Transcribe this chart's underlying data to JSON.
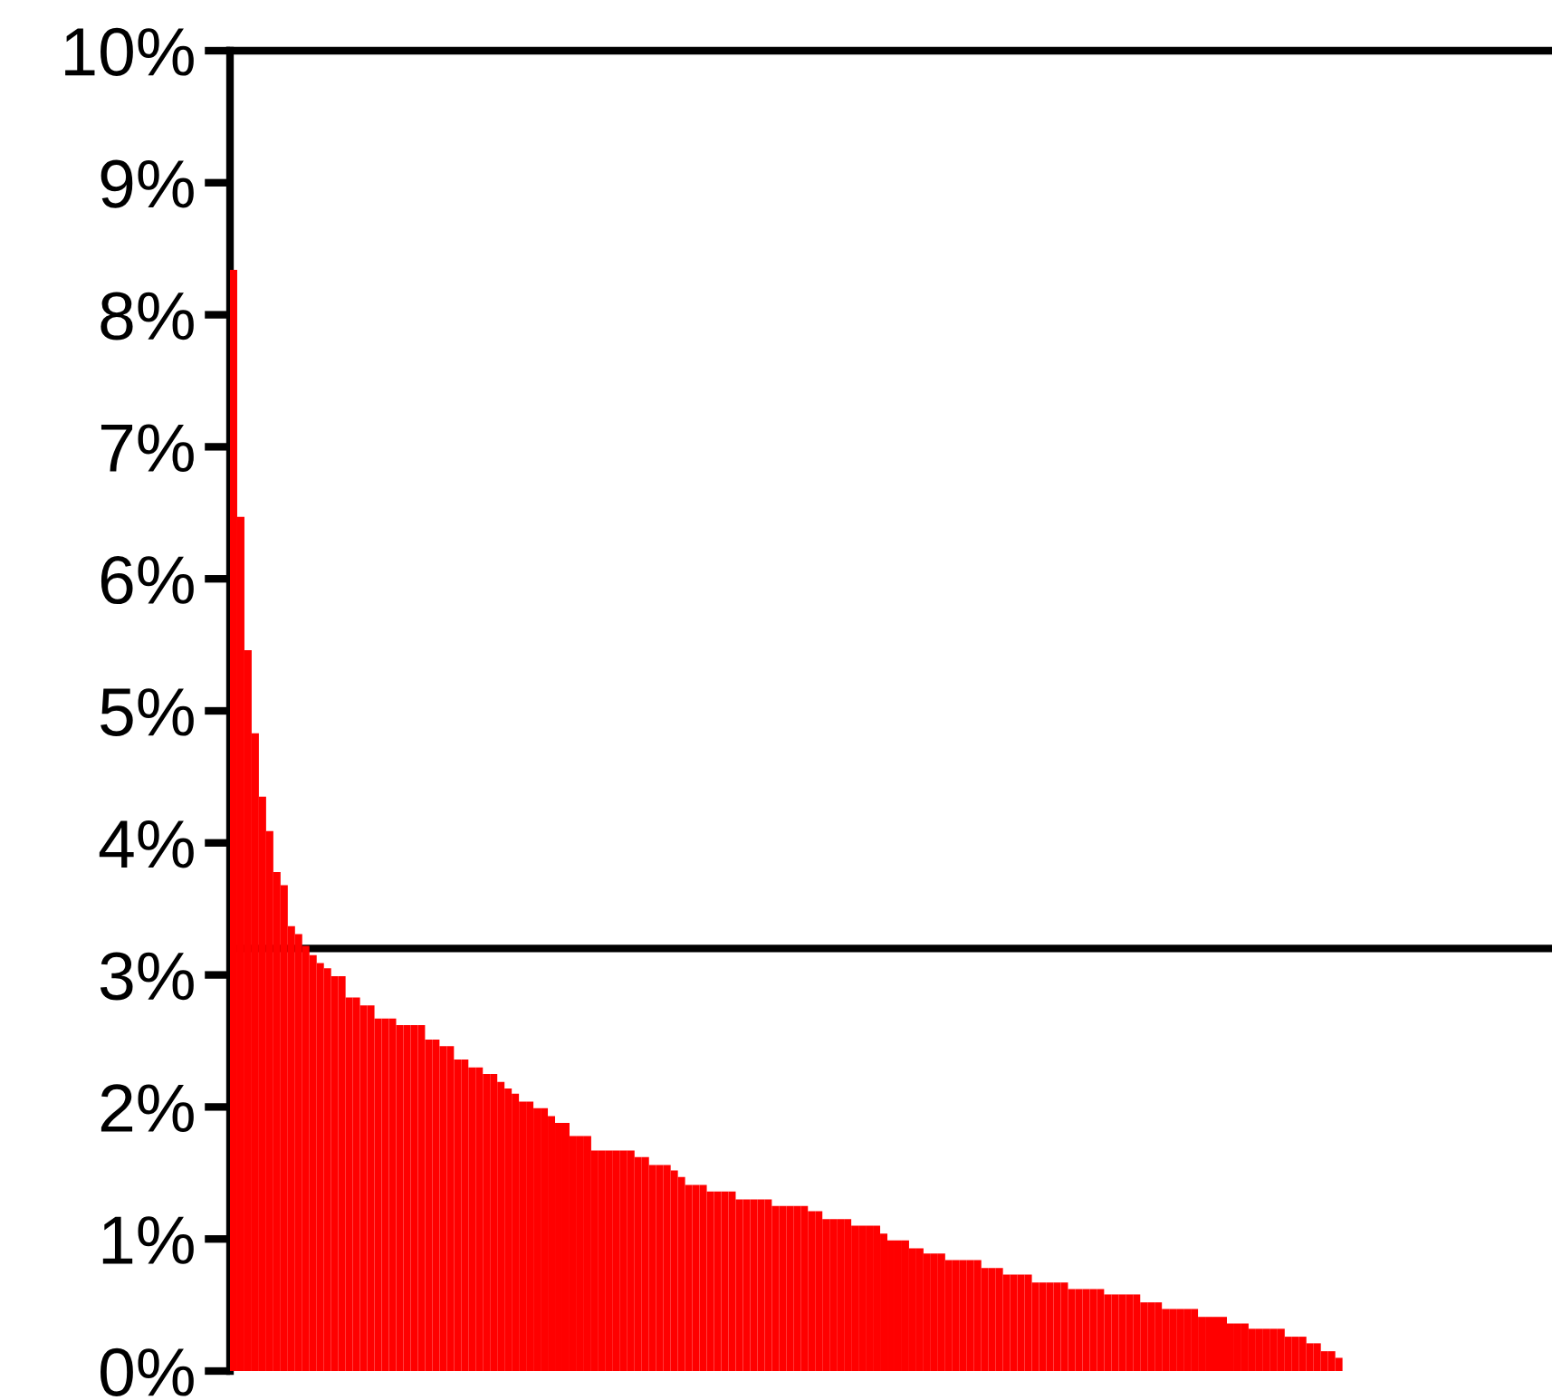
{
  "chart_data": {
    "type": "bar",
    "color": "#ff0000",
    "categories": [
      null,
      null,
      null,
      null,
      null,
      null,
      null,
      null,
      null,
      null,
      null,
      null,
      null,
      null,
      null,
      null,
      null,
      null,
      null,
      null,
      null,
      null,
      null,
      null,
      null,
      null,
      null,
      null,
      null,
      null,
      null,
      null,
      null,
      null,
      null,
      null,
      null,
      null,
      null,
      null,
      null,
      null,
      null,
      null,
      null,
      null,
      null,
      null,
      null,
      null,
      null,
      null,
      null,
      null,
      null,
      null,
      null,
      null,
      null,
      null,
      null,
      null,
      null,
      null,
      null,
      null,
      null,
      null,
      null,
      null,
      null,
      null,
      null,
      null,
      null,
      null,
      null,
      null,
      null,
      null,
      null,
      null,
      null,
      null,
      null,
      null,
      null,
      null,
      null,
      null,
      null,
      null,
      null,
      null,
      null,
      null,
      null,
      null,
      null,
      null,
      null,
      null,
      null,
      null,
      null,
      null,
      null,
      null,
      null,
      null,
      null,
      null,
      null,
      null,
      null,
      null,
      null,
      null,
      null,
      null,
      null,
      null,
      null,
      null,
      null,
      null,
      null,
      null,
      null,
      null,
      null,
      null,
      null,
      null,
      null,
      null,
      null,
      null,
      null,
      null,
      null,
      null,
      null,
      null,
      null,
      null,
      null,
      null,
      null,
      null,
      null,
      null,
      null,
      null,
      null,
      null,
      null,
      null,
      null,
      null,
      null,
      null,
      null,
      null,
      null,
      null,
      null,
      null,
      null,
      null,
      null,
      null,
      null,
      null,
      null,
      null,
      null,
      null,
      null,
      null,
      null,
      null,
      null
    ],
    "values": [
      8.34,
      6.47,
      5.46,
      4.83,
      4.35,
      4.09,
      3.78,
      3.68,
      3.37,
      3.31,
      3.22,
      3.15,
      3.09,
      3.05,
      2.99,
      2.99,
      2.83,
      2.83,
      2.77,
      2.77,
      2.67,
      2.67,
      2.67,
      2.62,
      2.62,
      2.62,
      2.62,
      2.51,
      2.51,
      2.46,
      2.46,
      2.36,
      2.36,
      2.3,
      2.3,
      2.25,
      2.25,
      2.19,
      2.14,
      2.1,
      2.04,
      2.04,
      1.99,
      1.99,
      1.93,
      1.88,
      1.88,
      1.78,
      1.78,
      1.78,
      1.67,
      1.67,
      1.67,
      1.67,
      1.67,
      1.67,
      1.62,
      1.62,
      1.56,
      1.56,
      1.56,
      1.52,
      1.47,
      1.41,
      1.41,
      1.41,
      1.36,
      1.36,
      1.36,
      1.36,
      1.3,
      1.3,
      1.3,
      1.3,
      1.3,
      1.25,
      1.25,
      1.25,
      1.25,
      1.25,
      1.21,
      1.21,
      1.15,
      1.15,
      1.15,
      1.15,
      1.1,
      1.1,
      1.1,
      1.1,
      1.04,
      0.99,
      0.99,
      0.99,
      0.93,
      0.93,
      0.89,
      0.89,
      0.89,
      0.84,
      0.84,
      0.84,
      0.84,
      0.84,
      0.78,
      0.78,
      0.78,
      0.73,
      0.73,
      0.73,
      0.73,
      0.67,
      0.67,
      0.67,
      0.67,
      0.67,
      0.62,
      0.62,
      0.62,
      0.62,
      0.62,
      0.58,
      0.58,
      0.58,
      0.58,
      0.58,
      0.52,
      0.52,
      0.52,
      0.47,
      0.47,
      0.47,
      0.47,
      0.47,
      0.41,
      0.41,
      0.41,
      0.41,
      0.36,
      0.36,
      0.36,
      0.32,
      0.32,
      0.32,
      0.32,
      0.32,
      0.26,
      0.26,
      0.26,
      0.21,
      0.21,
      0.15,
      0.15,
      0.1,
      0,
      0,
      0,
      0,
      0,
      0,
      0,
      0,
      0,
      0,
      0,
      0,
      0,
      0,
      0,
      0,
      0,
      0,
      0,
      0,
      0,
      0,
      0,
      0,
      0,
      0,
      0,
      0,
      0
    ],
    "ylim": [
      0,
      10
    ],
    "yticks": [
      {
        "value": 0,
        "label": "0%"
      },
      {
        "value": 1,
        "label": "1%"
      },
      {
        "value": 2,
        "label": "2%"
      },
      {
        "value": 3,
        "label": "3%"
      },
      {
        "value": 4,
        "label": "4%"
      },
      {
        "value": 5,
        "label": "5%"
      },
      {
        "value": 6,
        "label": "6%"
      },
      {
        "value": 7,
        "label": "7%"
      },
      {
        "value": 8,
        "label": "8%"
      },
      {
        "value": 9,
        "label": "9%"
      },
      {
        "value": 10,
        "label": "10%"
      }
    ],
    "ref_lines": [
      {
        "axis": "y",
        "value": 3.2,
        "color": "#000000"
      }
    ],
    "grid": false,
    "legend": false,
    "tick_labels": "y"
  }
}
